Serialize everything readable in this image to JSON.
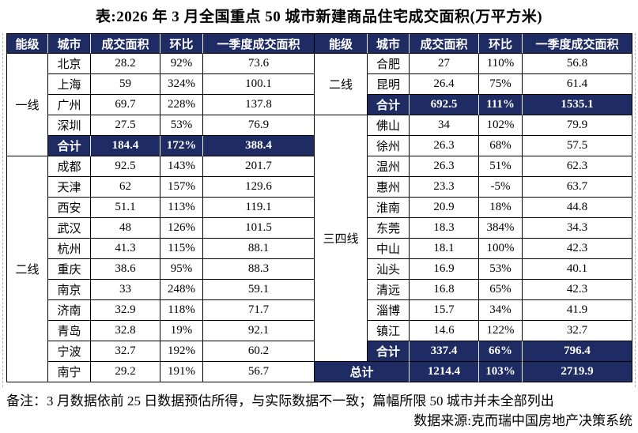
{
  "title": "表:2026 年 3 月全国重点 50 城市新建商品住宅成交面积(万平方米)",
  "colors": {
    "navy": "#1f2c63",
    "header_text": "#ffffff",
    "body_text": "#000000",
    "grid": "#000000"
  },
  "columns": [
    "能级",
    "城市",
    "成交面积",
    "环比",
    "一季度成交面积"
  ],
  "tables": [
    {
      "side": "left",
      "rows": [
        {
          "type": "normal",
          "tier": "一线",
          "tier_span": 5,
          "city": "北京",
          "area": "28.2",
          "mom": "92%",
          "q1": "73.6"
        },
        {
          "type": "normal",
          "city": "上海",
          "area": "59",
          "mom": "324%",
          "q1": "100.1"
        },
        {
          "type": "normal",
          "city": "广州",
          "area": "69.7",
          "mom": "228%",
          "q1": "137.8"
        },
        {
          "type": "normal",
          "city": "深圳",
          "area": "27.5",
          "mom": "53%",
          "q1": "76.9"
        },
        {
          "type": "summary",
          "city": "合计",
          "area": "184.4",
          "mom": "172%",
          "q1": "388.4"
        },
        {
          "type": "normal",
          "tier": "二线",
          "tier_span": 11,
          "city": "成都",
          "area": "92.5",
          "mom": "143%",
          "q1": "201.7"
        },
        {
          "type": "normal",
          "city": "天津",
          "area": "62",
          "mom": "157%",
          "q1": "129.6"
        },
        {
          "type": "normal",
          "city": "西安",
          "area": "51.1",
          "mom": "113%",
          "q1": "119.1"
        },
        {
          "type": "normal",
          "city": "武汉",
          "area": "48",
          "mom": "126%",
          "q1": "101.5"
        },
        {
          "type": "normal",
          "city": "杭州",
          "area": "41.3",
          "mom": "115%",
          "q1": "88.1"
        },
        {
          "type": "normal",
          "city": "重庆",
          "area": "38.6",
          "mom": "95%",
          "q1": "88.3"
        },
        {
          "type": "normal",
          "city": "南京",
          "area": "33",
          "mom": "248%",
          "q1": "59.1"
        },
        {
          "type": "normal",
          "city": "济南",
          "area": "32.9",
          "mom": "118%",
          "q1": "71.7"
        },
        {
          "type": "normal",
          "city": "青岛",
          "area": "32.8",
          "mom": "19%",
          "q1": "92.1"
        },
        {
          "type": "normal",
          "city": "宁波",
          "area": "32.7",
          "mom": "192%",
          "q1": "60.2"
        },
        {
          "type": "normal",
          "city": "南宁",
          "area": "29.2",
          "mom": "191%",
          "q1": "56.7"
        }
      ]
    },
    {
      "side": "right",
      "rows": [
        {
          "type": "normal",
          "tier": "二线",
          "tier_span": 3,
          "city": "合肥",
          "area": "27",
          "mom": "110%",
          "q1": "56.8"
        },
        {
          "type": "normal",
          "city": "昆明",
          "area": "26.4",
          "mom": "75%",
          "q1": "61.4"
        },
        {
          "type": "summary",
          "city": "合计",
          "area": "692.5",
          "mom": "111%",
          "q1": "1535.1"
        },
        {
          "type": "normal",
          "tier": "三四线",
          "tier_span": 12,
          "city": "佛山",
          "area": "34",
          "mom": "102%",
          "q1": "79.9"
        },
        {
          "type": "normal",
          "city": "徐州",
          "area": "26.3",
          "mom": "68%",
          "q1": "57.5"
        },
        {
          "type": "normal",
          "city": "温州",
          "area": "26.3",
          "mom": "51%",
          "q1": "62.3"
        },
        {
          "type": "normal",
          "city": "惠州",
          "area": "23.3",
          "mom": "-5%",
          "q1": "63.7"
        },
        {
          "type": "normal",
          "city": "淮南",
          "area": "20.9",
          "mom": "18%",
          "q1": "44.8"
        },
        {
          "type": "normal",
          "city": "东莞",
          "area": "18.3",
          "mom": "384%",
          "q1": "34.3"
        },
        {
          "type": "normal",
          "city": "中山",
          "area": "18.1",
          "mom": "100%",
          "q1": "42.3"
        },
        {
          "type": "normal",
          "city": "汕头",
          "area": "16.9",
          "mom": "53%",
          "q1": "40.1"
        },
        {
          "type": "normal",
          "city": "清远",
          "area": "16.8",
          "mom": "65%",
          "q1": "42.3"
        },
        {
          "type": "normal",
          "city": "淄博",
          "area": "15.7",
          "mom": "34%",
          "q1": "41.9"
        },
        {
          "type": "normal",
          "city": "镇江",
          "area": "14.6",
          "mom": "122%",
          "q1": "32.7"
        },
        {
          "type": "summary",
          "city": "合计",
          "area": "337.4",
          "mom": "66%",
          "q1": "796.4"
        },
        {
          "type": "grand",
          "city": "总计",
          "area": "1214.4",
          "mom": "103%",
          "q1": "2719.9"
        }
      ]
    }
  ],
  "footer": {
    "note": "备注：3 月数据依前 25 日数据预估所得，与实际数据不一致；篇幅所限 50 城市并未全部列出",
    "source": "数据来源:克而瑞中国房地产决策系统"
  }
}
